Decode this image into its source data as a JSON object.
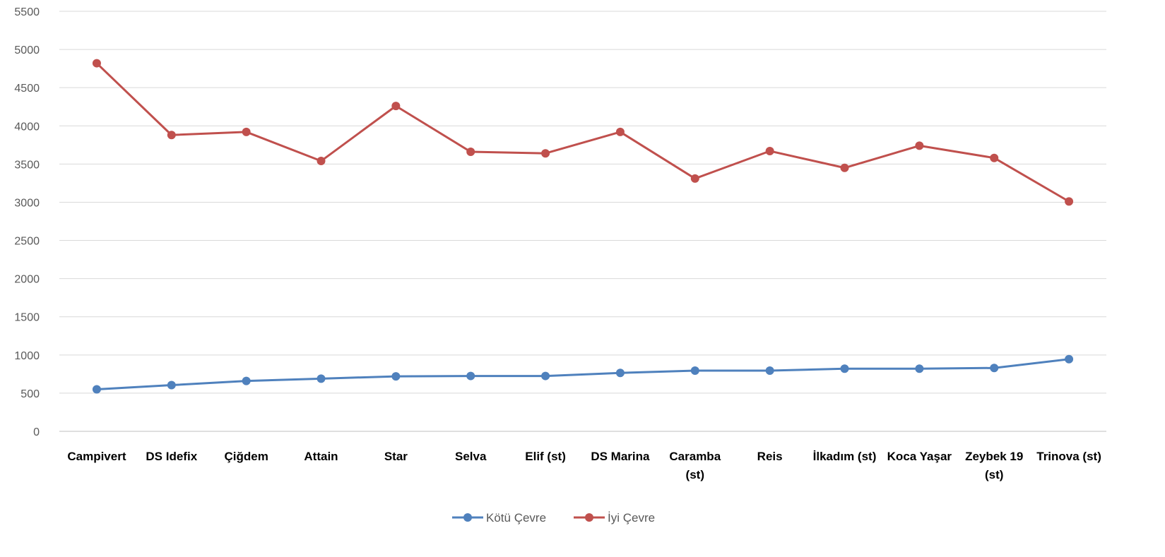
{
  "chart_data": {
    "type": "line",
    "categories": [
      [
        "Campivert"
      ],
      [
        "DS Idefix"
      ],
      [
        "Çiğdem"
      ],
      [
        "Attain"
      ],
      [
        "Star"
      ],
      [
        "Selva"
      ],
      [
        "Elif (st)"
      ],
      [
        "DS Marina"
      ],
      [
        "Caramba",
        "(st)"
      ],
      [
        "Reis"
      ],
      [
        "İlkadım (st)"
      ],
      [
        "Koca Yaşar"
      ],
      [
        "Zeybek 19",
        "(st)"
      ],
      [
        "Trinova (st)"
      ]
    ],
    "series": [
      {
        "name": "Kötü Çevre",
        "color": "#4f81bd",
        "values": [
          550,
          605,
          660,
          690,
          720,
          725,
          725,
          765,
          795,
          795,
          820,
          820,
          830,
          945
        ]
      },
      {
        "name": "İyi Çevre",
        "color": "#c0504d",
        "values": [
          4820,
          3880,
          3920,
          3540,
          4260,
          3660,
          3640,
          3920,
          3310,
          3670,
          3450,
          3740,
          3580,
          3010
        ]
      }
    ],
    "yticks": [
      0,
      500,
      1000,
      1500,
      2000,
      2500,
      3000,
      3500,
      4000,
      4500,
      5000,
      5500
    ],
    "ylim": [
      0,
      5500
    ],
    "grid": true,
    "legend_position": "bottom"
  }
}
